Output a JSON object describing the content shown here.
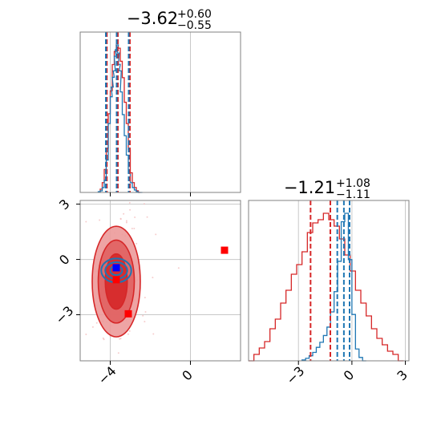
{
  "colors": {
    "red": "#d62728",
    "red_fill_dark": "#d62728",
    "red_fill_light": "#ec9a9a",
    "blue": "#1f77b4",
    "marker_red": "#ff0000",
    "marker_blue": "#0000ff",
    "grid": "#c8c8c8",
    "frame": "#808080"
  },
  "chart_data": [
    {
      "type": "histogram",
      "panel": "top-left",
      "title": {
        "value": "−3.62",
        "sup": "+0.60",
        "sub": "−0.55"
      },
      "xlim": [
        -5.5,
        2.5
      ],
      "x_ticks": [
        -4,
        0
      ],
      "grid": true,
      "series": [
        {
          "name": "",
          "color": "red",
          "style": "step",
          "bins_x": [
            -4.5,
            -4.4,
            -4.3,
            -4.2,
            -4.1,
            -4.0,
            -3.9,
            -3.8,
            -3.7,
            -3.6,
            -3.5,
            -3.4,
            -3.3,
            -3.2,
            -3.1,
            -3.0,
            -2.9,
            -2.8,
            -2.7,
            -2.6
          ],
          "counts": [
            2,
            6,
            14,
            27,
            48,
            62,
            78,
            86,
            90,
            88,
            80,
            70,
            55,
            42,
            26,
            12,
            6,
            3,
            1,
            0
          ],
          "quantiles": [
            -4.17,
            -3.62,
            -3.02
          ]
        },
        {
          "name": "",
          "color": "blue",
          "style": "step",
          "bins_x": [
            -4.6,
            -4.5,
            -4.4,
            -4.3,
            -4.2,
            -4.1,
            -4.0,
            -3.95,
            -3.9,
            -3.85,
            -3.8,
            -3.75,
            -3.7,
            -3.65,
            -3.6,
            -3.55,
            -3.5,
            -3.4,
            -3.3,
            -3.2,
            -3.1,
            -3.0,
            -2.9,
            -2.8,
            -2.7,
            -2.6,
            -2.5
          ],
          "counts": [
            1,
            2,
            6,
            15,
            40,
            85,
            118,
            130,
            142,
            150,
            168,
            176,
            182,
            172,
            158,
            150,
            124,
            96,
            70,
            46,
            24,
            12,
            6,
            3,
            1,
            0,
            0
          ],
          "quantiles": [
            -4.22,
            -3.68,
            -3.08
          ]
        }
      ]
    },
    {
      "type": "histogram",
      "panel": "bottom-right",
      "title": {
        "value": "−1.21",
        "sup": "+1.08",
        "sub": "−1.11"
      },
      "xlim": [
        -5.8,
        3.2
      ],
      "x_ticks": [
        -3,
        0,
        3
      ],
      "grid": true,
      "series": [
        {
          "name": "",
          "color": "red",
          "style": "step",
          "bins_x": [
            -5.8,
            -5.5,
            -5.2,
            -4.9,
            -4.6,
            -4.3,
            -4.0,
            -3.7,
            -3.4,
            -3.1,
            -2.8,
            -2.5,
            -2.2,
            -1.9,
            -1.6,
            -1.3,
            -1.0,
            -0.7,
            -0.4,
            -0.1,
            0.2,
            0.5,
            0.8,
            1.1,
            1.4,
            1.7,
            2.0,
            2.3,
            2.6
          ],
          "counts": [
            0,
            2,
            4,
            6,
            10,
            13,
            18,
            22,
            27,
            30,
            34,
            40,
            43,
            44,
            46,
            44,
            42,
            38,
            33,
            28,
            22,
            18,
            14,
            10,
            7,
            5,
            3,
            2,
            0
          ],
          "quantiles": [
            -2.32,
            -1.21,
            -0.13
          ]
        },
        {
          "name": "",
          "color": "blue",
          "style": "step",
          "bins_x": [
            -2.8,
            -2.6,
            -2.4,
            -2.2,
            -2.0,
            -1.8,
            -1.6,
            -1.4,
            -1.2,
            -1.0,
            -0.8,
            -0.6,
            -0.4,
            -0.2,
            0.0,
            0.2,
            0.4,
            0.6
          ],
          "counts": [
            1,
            3,
            6,
            10,
            16,
            22,
            30,
            40,
            58,
            82,
            118,
            165,
            175,
            120,
            55,
            14,
            4,
            0
          ],
          "quantiles": [
            -0.82,
            -0.45,
            -0.13
          ]
        }
      ]
    },
    {
      "type": "scatter",
      "panel": "bottom-left",
      "xlim": [
        -5.5,
        2.5
      ],
      "ylim": [
        -5.5,
        3.2
      ],
      "x_ticks": [
        -4,
        0
      ],
      "y_ticks": [
        3,
        0,
        -3
      ],
      "grid": true,
      "contours": [
        {
          "name": "",
          "color": "red",
          "cx": -3.7,
          "cy": -1.2,
          "rx": [
            1.2,
            0.9,
            0.55
          ],
          "ry": [
            3.0,
            2.25,
            1.5
          ]
        },
        {
          "name": "",
          "color": "blue",
          "cx": -3.7,
          "cy": -0.6,
          "rx": [
            0.75,
            0.55,
            0.3
          ],
          "ry": [
            0.65,
            0.45,
            0.25
          ]
        }
      ],
      "markers": [
        {
          "name": "",
          "color": "marker_blue",
          "x": -3.7,
          "y": -0.45
        },
        {
          "name": "",
          "color": "marker_red",
          "x": -3.7,
          "y": -1.1
        },
        {
          "name": "",
          "color": "marker_red",
          "x": -3.1,
          "y": -2.95
        },
        {
          "name": "",
          "color": "marker_red",
          "x": 1.7,
          "y": 0.5
        }
      ]
    }
  ]
}
